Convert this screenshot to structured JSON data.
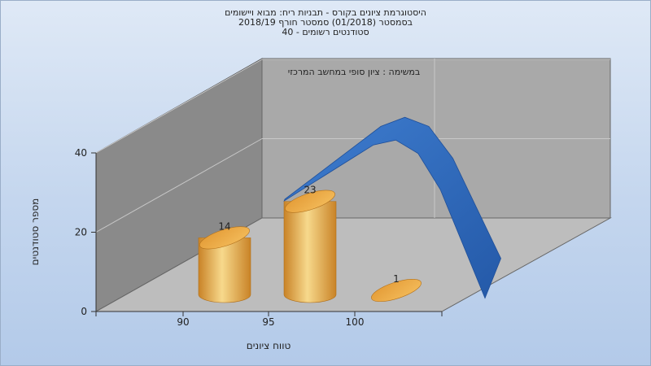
{
  "chart_data": {
    "type": "bar",
    "title_lines": [
      "היסטוגרמת ציונים בקורס - תבניות ריח: מבוא ויישומים",
      "בסמסטר  (01/2018)  סמסטר חורף 2018/19",
      "סטודנטים רשומים - 40"
    ],
    "annotation": "במשימה : ציון סופי במחשב המרכזי",
    "xlabel": "טווח ציונים",
    "ylabel": "מספר סטודנטים",
    "categories": [
      "90",
      "95",
      "100"
    ],
    "values": [
      14,
      23,
      1
    ],
    "y_ticks": [
      0,
      20,
      40
    ],
    "ylim": [
      0,
      40
    ],
    "trend_series": {
      "x": [
        93,
        94,
        95,
        96,
        97,
        98,
        99,
        100,
        101,
        102
      ],
      "y": [
        26,
        30,
        34,
        38,
        42,
        44,
        42,
        35,
        24,
        13
      ]
    },
    "colors": {
      "bar": "#e8a33c",
      "bar_highlight": "#f7d98c",
      "curve": "#2f6bbf",
      "wall": "#a9a9a9",
      "left_wall": "#8a8a8a",
      "floor": "#bdbdbd"
    },
    "grid": true
  }
}
